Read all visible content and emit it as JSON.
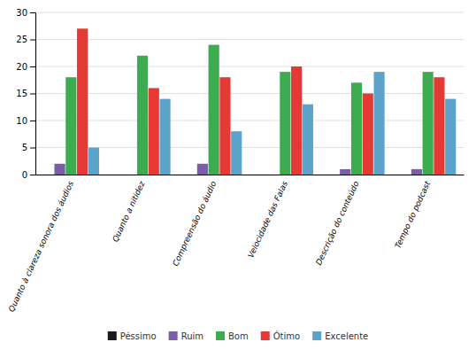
{
  "chart_data": {
    "type": "bar",
    "categories": [
      "Quanto à clareza sonora dos áudios",
      "Quanto a nitidez",
      "Compreensão do áudio",
      "Velocidade das Falas",
      "Descrição do conteúdo",
      "Tempo do podcast"
    ],
    "series": [
      {
        "name": "Péssimo",
        "color": "#1a1a1a",
        "values": [
          0,
          0,
          0,
          0,
          0,
          0
        ]
      },
      {
        "name": "Ruim",
        "color": "#7b5ea7",
        "values": [
          2,
          0,
          2,
          0,
          1,
          1
        ]
      },
      {
        "name": "Bom",
        "color": "#3dab4f",
        "values": [
          18,
          22,
          24,
          19,
          17,
          19
        ]
      },
      {
        "name": "Ótimo",
        "color": "#e53935",
        "values": [
          27,
          16,
          18,
          20,
          15,
          18
        ]
      },
      {
        "name": "Excelente",
        "color": "#5ba3c9",
        "values": [
          5,
          14,
          8,
          13,
          19,
          14
        ]
      }
    ],
    "ylim": [
      0,
      30
    ],
    "yticks": [
      0,
      5,
      10,
      15,
      20,
      25,
      30
    ],
    "grid": true,
    "legend": "bottom"
  }
}
